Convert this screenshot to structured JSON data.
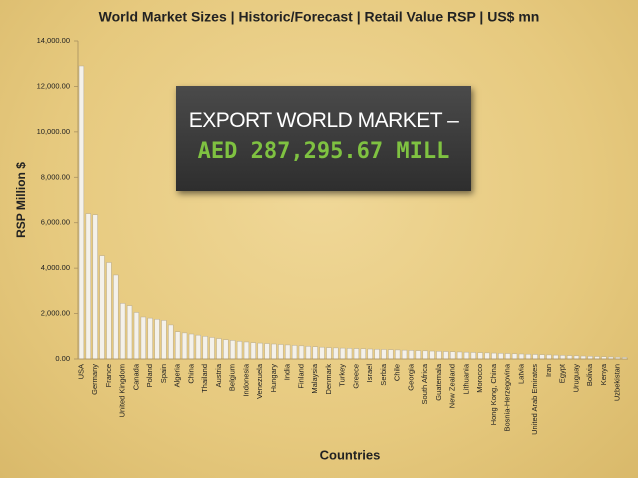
{
  "chart_data": {
    "type": "bar",
    "title": "World Market Sizes | Historic/Forecast | Retail Value RSP | US$ mn",
    "y_label": "RSP Million $",
    "x_label": "Countries",
    "color": "#f4f1ea",
    "categories": [
      "USA",
      null,
      "Germany",
      null,
      "France",
      null,
      "United Kingdom",
      null,
      "Canada",
      null,
      "Poland",
      null,
      "Spain",
      null,
      "Algeria",
      null,
      "China",
      null,
      "Thailand",
      null,
      "Austria",
      null,
      "Belgium",
      null,
      "Indonesia",
      null,
      "Venezuela",
      null,
      "Hungary",
      null,
      "India",
      null,
      "Finland",
      null,
      "Malaysia",
      null,
      "Denmark",
      null,
      "Turkey",
      null,
      "Greece",
      null,
      "Israel",
      null,
      "Serbia",
      null,
      "Chile",
      null,
      "Georgia",
      null,
      "South Africa",
      null,
      "Guatemala",
      null,
      "New Zealand",
      null,
      "Lithuania",
      null,
      "Morocco",
      null,
      "Hong Kong, China",
      null,
      "Bosnia-Herzegovina",
      null,
      "Latvia",
      null,
      "United Arab Emirates",
      null,
      "Iran",
      null,
      "Egypt",
      null,
      "Uruguay",
      null,
      "Bolivia",
      null,
      "Kenya",
      null,
      "Uzbekistan",
      null
    ],
    "values": [
      12900,
      6400,
      6350,
      4550,
      4250,
      3700,
      2450,
      2350,
      2050,
      1850,
      1800,
      1750,
      1700,
      1500,
      1200,
      1150,
      1100,
      1050,
      1000,
      950,
      900,
      850,
      820,
      780,
      750,
      720,
      700,
      680,
      660,
      640,
      620,
      600,
      580,
      560,
      540,
      520,
      500,
      490,
      480,
      470,
      460,
      450,
      440,
      430,
      420,
      410,
      400,
      390,
      380,
      370,
      360,
      350,
      340,
      330,
      320,
      310,
      300,
      290,
      280,
      270,
      260,
      250,
      240,
      230,
      220,
      210,
      200,
      190,
      180,
      170,
      160,
      150,
      140,
      130,
      120,
      110,
      100,
      90,
      80,
      70
    ],
    "ylim": [
      0,
      14000
    ],
    "yticks": [
      {
        "value": 0,
        "label": "0.00"
      },
      {
        "value": 2000,
        "label": "2,000.00"
      },
      {
        "value": 4000,
        "label": "4,000.00"
      },
      {
        "value": 6000,
        "label": "6,000.00"
      },
      {
        "value": 8000,
        "label": "8,000.00"
      },
      {
        "value": 10000,
        "label": "10,000.00"
      },
      {
        "value": 12000,
        "label": "12,000.00"
      },
      {
        "value": 14000,
        "label": "14,000.00"
      }
    ],
    "grid": false
  },
  "callout": {
    "heading": "EXPORT WORLD MARKET –",
    "value": "AED 287,295.67 MILL"
  }
}
